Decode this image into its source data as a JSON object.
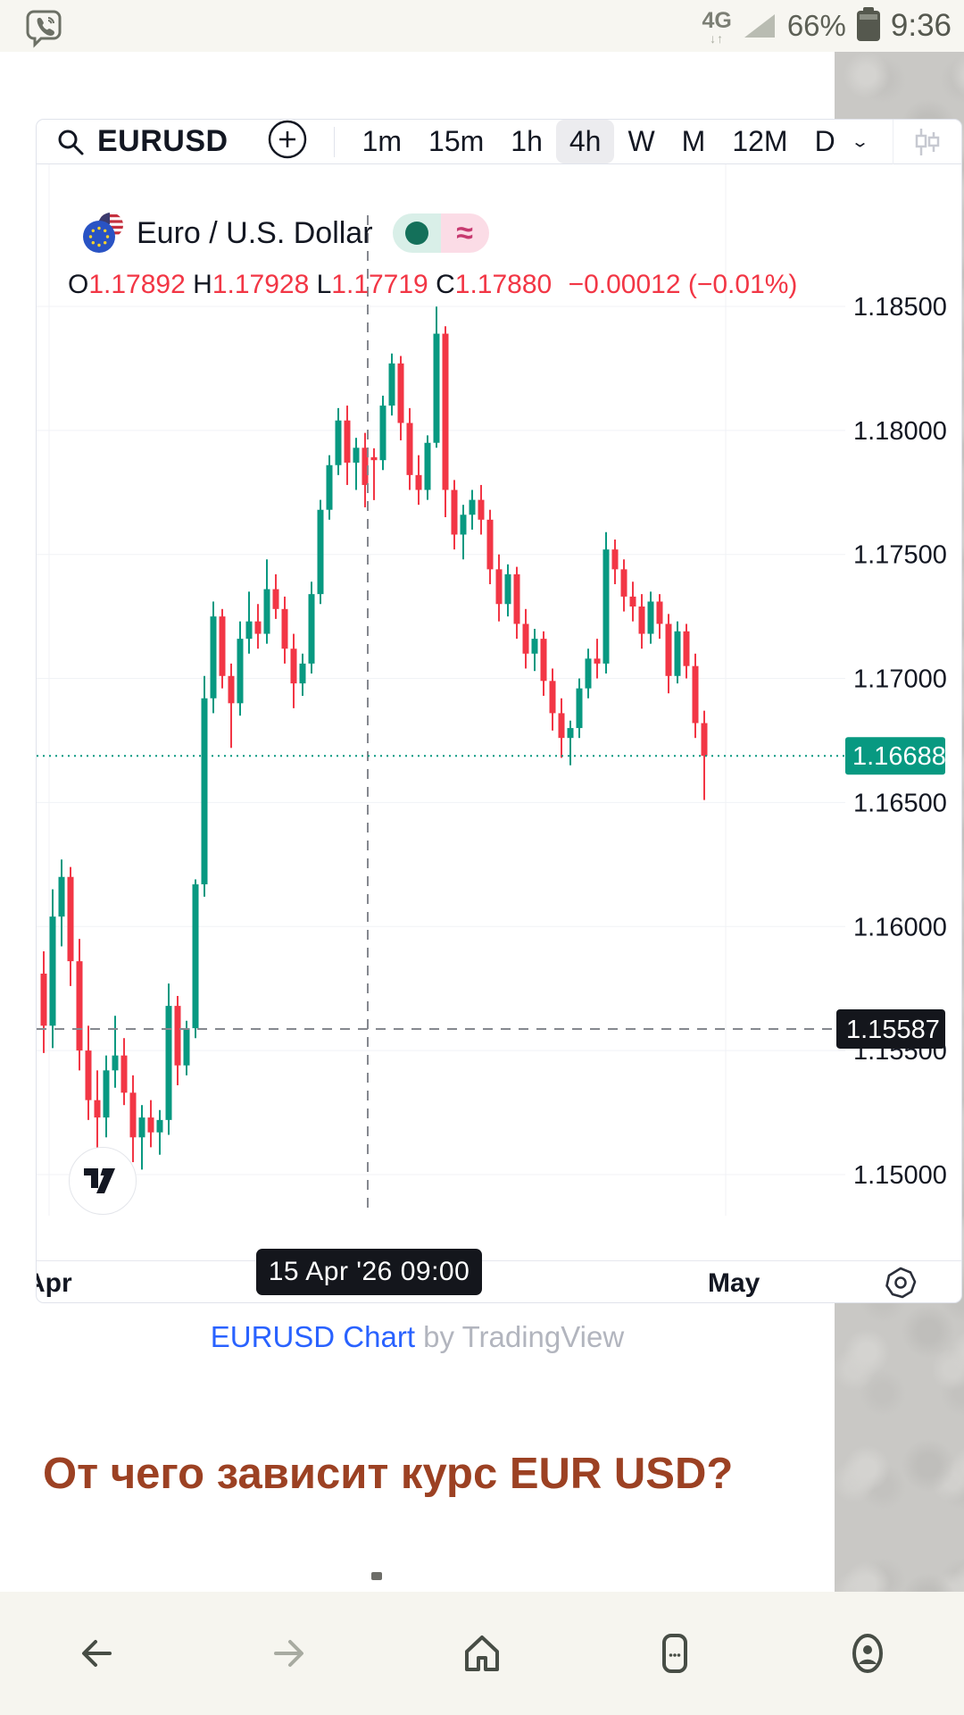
{
  "status_bar": {
    "network": "4G",
    "battery": "66%",
    "time": "9:36"
  },
  "toolbar": {
    "symbol": "EURUSD",
    "timeframes": [
      "1m",
      "15m",
      "1h",
      "4h",
      "W",
      "M",
      "12M",
      "D"
    ],
    "active_timeframe": "4h"
  },
  "legend": {
    "title": "Euro / U.S. Dollar",
    "approx_symbol": "≈"
  },
  "ohlc": {
    "o_label": "O",
    "o": "1.17892",
    "h_label": "H",
    "h": "1.17928",
    "l_label": "L",
    "l": "1.17719",
    "c_label": "C",
    "c": "1.17880",
    "change": "−0.00012 (−0.01%)"
  },
  "attribution": {
    "link": "EURUSD Chart",
    "rest": " by TradingView"
  },
  "article": {
    "heading": "От чего зависит курс EUR USD?"
  },
  "colors": {
    "up": "#089981",
    "down": "#f23645",
    "grid": "#f0f2f6",
    "axis_text": "#131722",
    "crosshair": "#85888f",
    "current_badge": "#089981",
    "crosshair_badge": "#14161c",
    "link_blue": "#2962ff",
    "heading_brown": "#9c4123"
  },
  "chart_data": {
    "type": "candlestick",
    "title": "Euro / U.S. Dollar",
    "symbol": "EURUSD",
    "timeframe": "4h",
    "price_axis_labels": [
      "1.18500",
      "1.18000",
      "1.17500",
      "1.17000",
      "1.16500",
      "1.16000",
      "1.15500",
      "1.15000"
    ],
    "time_axis_labels": [
      "Apr",
      "May"
    ],
    "ylim": [
      1.1483,
      1.1893
    ],
    "current_price": "1.16688",
    "current_price_value": 1.16688,
    "crosshair": {
      "price": "1.15587",
      "price_value": 1.15587,
      "date": "15 Apr '26  09:00",
      "candle_index": 37
    },
    "candles": [
      [
        1.1581,
        1.159,
        1.1549,
        1.156
      ],
      [
        1.156,
        1.1615,
        1.1551,
        1.1604
      ],
      [
        1.1604,
        1.1627,
        1.1592,
        1.162
      ],
      [
        1.162,
        1.1624,
        1.1576,
        1.1586
      ],
      [
        1.1586,
        1.1595,
        1.1542,
        1.155
      ],
      [
        1.155,
        1.156,
        1.1522,
        1.153
      ],
      [
        1.153,
        1.1542,
        1.1506,
        1.1523
      ],
      [
        1.1523,
        1.1548,
        1.1515,
        1.1542
      ],
      [
        1.1542,
        1.1564,
        1.1535,
        1.1548
      ],
      [
        1.1548,
        1.1555,
        1.1528,
        1.1533
      ],
      [
        1.1533,
        1.154,
        1.1505,
        1.1515
      ],
      [
        1.1515,
        1.1528,
        1.1502,
        1.1523
      ],
      [
        1.1523,
        1.153,
        1.1511,
        1.1517
      ],
      [
        1.1517,
        1.1526,
        1.1508,
        1.1522
      ],
      [
        1.1522,
        1.1577,
        1.1516,
        1.1568
      ],
      [
        1.1568,
        1.1572,
        1.1536,
        1.1544
      ],
      [
        1.1544,
        1.1562,
        1.154,
        1.1559
      ],
      [
        1.1559,
        1.1619,
        1.1555,
        1.1617
      ],
      [
        1.1617,
        1.1701,
        1.1612,
        1.1692
      ],
      [
        1.1692,
        1.1731,
        1.1686,
        1.1725
      ],
      [
        1.1725,
        1.1728,
        1.1696,
        1.1701
      ],
      [
        1.1701,
        1.1706,
        1.1672,
        1.169
      ],
      [
        1.169,
        1.1723,
        1.1685,
        1.1716
      ],
      [
        1.1716,
        1.1735,
        1.171,
        1.1723
      ],
      [
        1.1723,
        1.173,
        1.1712,
        1.1718
      ],
      [
        1.1718,
        1.1748,
        1.1714,
        1.1736
      ],
      [
        1.1736,
        1.1742,
        1.1724,
        1.1728
      ],
      [
        1.1728,
        1.1733,
        1.1706,
        1.1712
      ],
      [
        1.1712,
        1.1718,
        1.1688,
        1.1698
      ],
      [
        1.1698,
        1.171,
        1.1693,
        1.1706
      ],
      [
        1.1706,
        1.1739,
        1.1702,
        1.1734
      ],
      [
        1.1734,
        1.1772,
        1.173,
        1.1768
      ],
      [
        1.1768,
        1.179,
        1.1764,
        1.1786
      ],
      [
        1.1786,
        1.1809,
        1.1782,
        1.1804
      ],
      [
        1.1804,
        1.181,
        1.1778,
        1.1787
      ],
      [
        1.1787,
        1.1797,
        1.1776,
        1.1793
      ],
      [
        1.1793,
        1.1799,
        1.1769,
        1.1778
      ],
      [
        1.17892,
        1.17928,
        1.17719,
        1.1788
      ],
      [
        1.1788,
        1.1814,
        1.1784,
        1.181
      ],
      [
        1.181,
        1.1831,
        1.1806,
        1.1827
      ],
      [
        1.1827,
        1.183,
        1.1796,
        1.1803
      ],
      [
        1.1803,
        1.1809,
        1.1776,
        1.1782
      ],
      [
        1.1782,
        1.179,
        1.177,
        1.1776
      ],
      [
        1.1776,
        1.1798,
        1.1772,
        1.1795
      ],
      [
        1.1795,
        1.18499,
        1.1793,
        1.1839
      ],
      [
        1.1839,
        1.1842,
        1.1765,
        1.1776
      ],
      [
        1.1776,
        1.178,
        1.1752,
        1.1758
      ],
      [
        1.1758,
        1.177,
        1.1748,
        1.1766
      ],
      [
        1.1766,
        1.1776,
        1.176,
        1.1772
      ],
      [
        1.1772,
        1.1778,
        1.1758,
        1.1764
      ],
      [
        1.1764,
        1.1768,
        1.1738,
        1.1744
      ],
      [
        1.1744,
        1.175,
        1.1723,
        1.173
      ],
      [
        1.173,
        1.1746,
        1.1725,
        1.1742
      ],
      [
        1.1742,
        1.1745,
        1.1716,
        1.1722
      ],
      [
        1.1722,
        1.1728,
        1.1704,
        1.171
      ],
      [
        1.171,
        1.172,
        1.1703,
        1.1716
      ],
      [
        1.1716,
        1.1719,
        1.1693,
        1.1699
      ],
      [
        1.1699,
        1.1704,
        1.1679,
        1.1686
      ],
      [
        1.1686,
        1.1692,
        1.1668,
        1.1676
      ],
      [
        1.1676,
        1.1683,
        1.1665,
        1.168
      ],
      [
        1.168,
        1.17,
        1.1676,
        1.1696
      ],
      [
        1.1696,
        1.1712,
        1.1692,
        1.1708
      ],
      [
        1.1708,
        1.1716,
        1.17,
        1.1706
      ],
      [
        1.1706,
        1.1759,
        1.1702,
        1.1752
      ],
      [
        1.1752,
        1.1756,
        1.1738,
        1.1744
      ],
      [
        1.1744,
        1.1748,
        1.1727,
        1.1733
      ],
      [
        1.1733,
        1.1739,
        1.1723,
        1.1729
      ],
      [
        1.1729,
        1.1734,
        1.1712,
        1.1718
      ],
      [
        1.1718,
        1.1735,
        1.1714,
        1.1731
      ],
      [
        1.1731,
        1.1734,
        1.1716,
        1.1722
      ],
      [
        1.1722,
        1.1726,
        1.1694,
        1.1701
      ],
      [
        1.1701,
        1.1723,
        1.1698,
        1.1719
      ],
      [
        1.1719,
        1.1722,
        1.17,
        1.1705
      ],
      [
        1.1705,
        1.171,
        1.1676,
        1.1682
      ],
      [
        1.1682,
        1.1687,
        1.1651,
        1.16688
      ]
    ]
  }
}
